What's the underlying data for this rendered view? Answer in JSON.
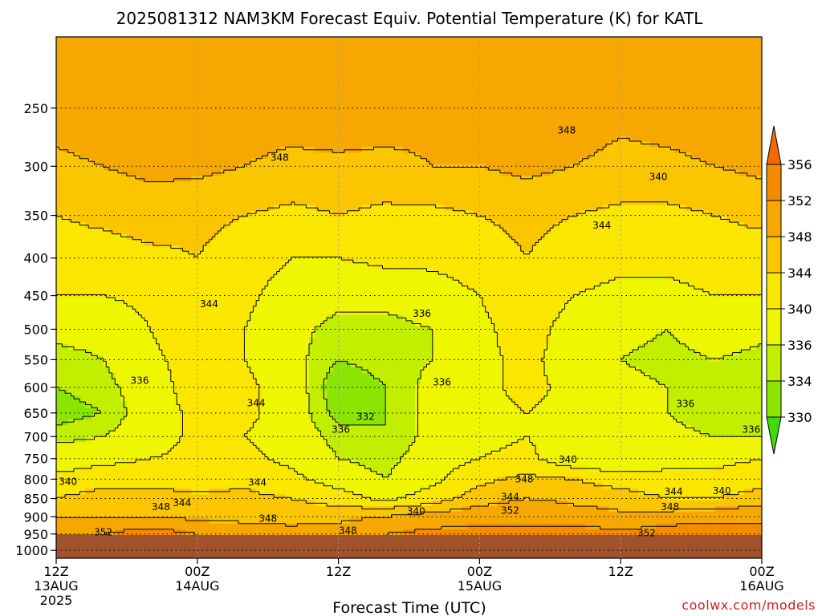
{
  "chart_data": {
    "type": "heatmap",
    "title": "2025081312 NAM3KM Forecast Equiv. Potential Temperature (K) for KATL",
    "xlabel": "Forecast Time (UTC)",
    "ylabel": "",
    "credit": "coolwx.com/models",
    "x_ticks": [
      {
        "hour": 0,
        "line1": "12Z",
        "line2": "13AUG",
        "line3": "2025"
      },
      {
        "hour": 12,
        "line1": "00Z",
        "line2": "14AUG",
        "line3": ""
      },
      {
        "hour": 24,
        "line1": "12Z",
        "line2": "",
        "line3": ""
      },
      {
        "hour": 36,
        "line1": "00Z",
        "line2": "15AUG",
        "line3": ""
      },
      {
        "hour": 48,
        "line1": "12Z",
        "line2": "",
        "line3": ""
      },
      {
        "hour": 60,
        "line1": "00Z",
        "line2": "16AUG",
        "line3": ""
      }
    ],
    "xlim": [
      0,
      60
    ],
    "y_scale": "log-pressure",
    "ylim": [
      1025,
      200
    ],
    "y_ticks": [
      "250",
      "300",
      "350",
      "400",
      "450",
      "500",
      "550",
      "600",
      "650",
      "700",
      "750",
      "800",
      "850",
      "900",
      "950",
      "1000"
    ],
    "grid": true,
    "ground_level_mb": 975,
    "colorbar": {
      "levels": [
        "330",
        "334",
        "336",
        "340",
        "344",
        "348",
        "352",
        "356"
      ],
      "colors": [
        "#3ddc0a",
        "#8ae600",
        "#c2ee00",
        "#eef600",
        "#fbe600",
        "#fbc600",
        "#f7a800",
        "#f58c00",
        "#f56800"
      ],
      "placement": "right"
    },
    "series": [
      {
        "x": [
          0,
          4,
          8,
          12,
          16,
          20,
          24,
          28,
          32,
          36,
          40,
          44,
          48,
          52,
          56,
          60
        ],
        "pressure_levels": [
          250,
          300,
          350,
          400,
          450,
          500,
          550,
          600,
          650,
          700,
          750,
          800,
          850,
          900,
          950
        ],
        "values": [
          [
            350,
            351,
            352,
            351,
            350,
            350,
            351,
            350,
            349,
            350,
            351,
            350,
            349,
            350,
            351,
            352
          ],
          [
            347,
            348,
            349,
            349,
            348,
            347,
            347,
            347,
            348,
            348,
            349,
            348,
            347,
            347,
            348,
            349
          ],
          [
            344,
            345,
            346,
            345,
            344,
            343,
            344,
            343,
            343,
            344,
            345,
            344,
            343,
            343,
            344,
            345
          ],
          [
            342,
            342,
            343,
            344,
            342,
            340,
            340,
            341,
            341,
            342,
            344,
            342,
            341,
            341,
            342,
            342
          ],
          [
            340,
            340,
            341,
            343,
            341,
            338,
            337,
            337,
            338,
            340,
            343,
            340,
            339,
            339,
            340,
            340
          ],
          [
            337,
            337,
            340,
            343,
            340,
            337,
            335,
            335,
            336,
            339,
            342,
            338,
            337,
            336,
            338,
            337
          ],
          [
            335,
            336,
            339,
            342,
            340,
            337,
            334,
            335,
            336,
            339,
            341,
            338,
            336,
            335,
            336,
            335
          ],
          [
            334,
            335,
            338,
            342,
            341,
            338,
            332,
            334,
            337,
            339,
            341,
            339,
            337,
            336,
            335,
            334
          ],
          [
            333,
            334,
            338,
            341,
            341,
            338,
            333,
            334,
            337,
            339,
            340,
            339,
            337,
            336,
            334,
            335
          ],
          [
            335,
            336,
            338,
            341,
            340,
            338,
            335,
            334,
            337,
            339,
            340,
            338,
            336,
            337,
            336,
            336
          ],
          [
            338,
            339,
            340,
            341,
            341,
            339,
            336,
            335,
            338,
            340,
            341,
            337,
            336,
            339,
            339,
            340
          ],
          [
            341,
            342,
            342,
            342,
            343,
            341,
            338,
            336,
            339,
            343,
            345,
            344,
            342,
            341,
            341,
            342
          ],
          [
            344,
            346,
            346,
            345,
            345,
            344,
            342,
            339,
            342,
            346,
            348,
            347,
            346,
            344,
            344,
            346
          ],
          [
            348,
            348,
            348,
            347,
            347,
            347,
            347,
            348,
            350,
            351,
            352,
            350,
            349,
            350,
            351,
            351
          ],
          [
            352,
            352,
            354,
            352,
            350,
            349,
            350,
            352,
            353,
            353,
            352,
            354,
            353,
            354,
            354,
            354
          ]
        ]
      }
    ],
    "contour_labels": [
      {
        "text": "348",
        "hour": 43.4,
        "p": 268
      },
      {
        "text": "348",
        "hour": 19.0,
        "p": 292
      },
      {
        "text": "340",
        "hour": 51.2,
        "p": 310
      },
      {
        "text": "344",
        "hour": 46.4,
        "p": 361
      },
      {
        "text": "344",
        "hour": 13.0,
        "p": 462
      },
      {
        "text": "336",
        "hour": 31.1,
        "p": 476
      },
      {
        "text": "336",
        "hour": 7.1,
        "p": 587
      },
      {
        "text": "336",
        "hour": 32.8,
        "p": 590
      },
      {
        "text": "344",
        "hour": 17.0,
        "p": 630
      },
      {
        "text": "332",
        "hour": 26.3,
        "p": 658
      },
      {
        "text": "336",
        "hour": 53.5,
        "p": 632
      },
      {
        "text": "336",
        "hour": 24.2,
        "p": 685
      },
      {
        "text": "336",
        "hour": 59.1,
        "p": 685
      },
      {
        "text": "340",
        "hour": 43.5,
        "p": 752
      },
      {
        "text": "340",
        "hour": 1.0,
        "p": 806
      },
      {
        "text": "344",
        "hour": 17.1,
        "p": 808
      },
      {
        "text": "348",
        "hour": 39.8,
        "p": 800
      },
      {
        "text": "344",
        "hour": 52.5,
        "p": 832
      },
      {
        "text": "340",
        "hour": 56.6,
        "p": 830
      },
      {
        "text": "344",
        "hour": 10.7,
        "p": 862
      },
      {
        "text": "348",
        "hour": 8.9,
        "p": 873
      },
      {
        "text": "344",
        "hour": 38.6,
        "p": 846
      },
      {
        "text": "340",
        "hour": 30.6,
        "p": 885
      },
      {
        "text": "352",
        "hour": 38.6,
        "p": 883
      },
      {
        "text": "348",
        "hour": 52.2,
        "p": 873
      },
      {
        "text": "348",
        "hour": 18.0,
        "p": 905
      },
      {
        "text": "348",
        "hour": 24.8,
        "p": 940
      },
      {
        "text": "352",
        "hour": 4.0,
        "p": 945
      },
      {
        "text": "352",
        "hour": 50.2,
        "p": 947
      }
    ]
  }
}
